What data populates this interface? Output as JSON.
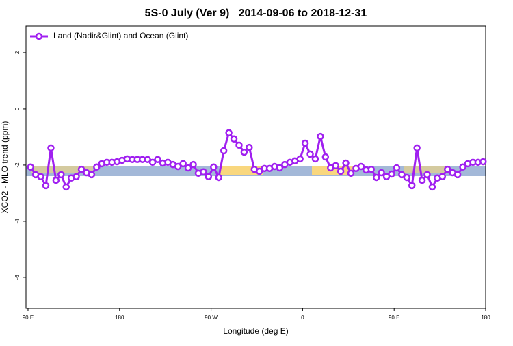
{
  "chart_data": {
    "type": "line",
    "title": "5S-0 July (Ver 9)   2014-09-06 to 2018-12-31",
    "x_label": "Longitude (deg E)",
    "y_label": "XCO2 - MLO trend (ppm)",
    "xlim": [
      88,
      540
    ],
    "ylim": [
      -7.1,
      2.95
    ],
    "xticks": [
      {
        "value": 90,
        "label": "90 E"
      },
      {
        "value": 180,
        "label": "180"
      },
      {
        "value": 270,
        "label": "90 W"
      },
      {
        "value": 360,
        "label": "0"
      },
      {
        "value": 450,
        "label": "90 E"
      },
      {
        "value": 540,
        "label": "180"
      }
    ],
    "yticks": [
      -6,
      -4,
      -2,
      0,
      2
    ],
    "legend": "top-left",
    "x": [
      92.5,
      97.5,
      102.5,
      107.5,
      112.5,
      117.5,
      122.5,
      127.5,
      132.5,
      137.5,
      142.5,
      147.5,
      152.5,
      157.5,
      162.5,
      167.5,
      172.5,
      177.5,
      182.5,
      187.5,
      192.5,
      197.5,
      202.5,
      207.5,
      212.5,
      217.5,
      222.5,
      227.5,
      232.5,
      237.5,
      242.5,
      247.5,
      252.5,
      257.5,
      262.5,
      267.5,
      272.5,
      277.5,
      282.5,
      287.5,
      292.5,
      297.5,
      302.5,
      307.5,
      312.5,
      317.5,
      322.5,
      327.5,
      332.5,
      337.5,
      342.5,
      347.5,
      352.5,
      357.5,
      362.5,
      367.5,
      372.5,
      377.5,
      382.5,
      387.5,
      392.5,
      397.5,
      402.5,
      407.5,
      412.5,
      417.5,
      422.5,
      427.5,
      432.5,
      437.5,
      442.5,
      447.5,
      452.5,
      457.5,
      462.5,
      467.5,
      472.5,
      477.5,
      482.5,
      487.5,
      492.5,
      497.5,
      502.5,
      507.5,
      512.5,
      517.5,
      522.5,
      527.5,
      532.5,
      537.5
    ],
    "series": [
      {
        "name": "Land (Nadir&Glint) and Ocean (Glint)",
        "color": "#a020f0",
        "values": [
          -2.07,
          -2.34,
          -2.41,
          -2.73,
          -1.39,
          -2.54,
          -2.34,
          -2.78,
          -2.46,
          -2.41,
          -2.15,
          -2.27,
          -2.34,
          -2.07,
          -1.95,
          -1.9,
          -1.9,
          -1.88,
          -1.83,
          -1.78,
          -1.8,
          -1.8,
          -1.8,
          -1.8,
          -1.9,
          -1.8,
          -1.93,
          -1.9,
          -1.98,
          -2.05,
          -1.95,
          -2.1,
          -1.98,
          -2.29,
          -2.24,
          -2.41,
          -2.07,
          -2.44,
          -1.49,
          -0.85,
          -1.07,
          -1.29,
          -1.54,
          -1.37,
          -2.15,
          -2.22,
          -2.12,
          -2.12,
          -2.05,
          -2.1,
          -1.98,
          -1.9,
          -1.85,
          -1.78,
          -1.22,
          -1.61,
          -1.78,
          -0.98,
          -1.71,
          -2.1,
          -2.02,
          -2.22,
          -1.93,
          -2.29,
          -2.12,
          -2.05,
          -2.17,
          -2.15,
          -2.44,
          -2.27,
          -2.41,
          -2.32,
          -2.1,
          -2.34,
          -2.44,
          -2.73,
          -1.39,
          -2.54,
          -2.34,
          -2.78,
          -2.46,
          -2.41,
          -2.15,
          -2.27,
          -2.34,
          -2.07,
          -1.95,
          -1.9,
          -1.9,
          -1.88
        ]
      }
    ]
  }
}
